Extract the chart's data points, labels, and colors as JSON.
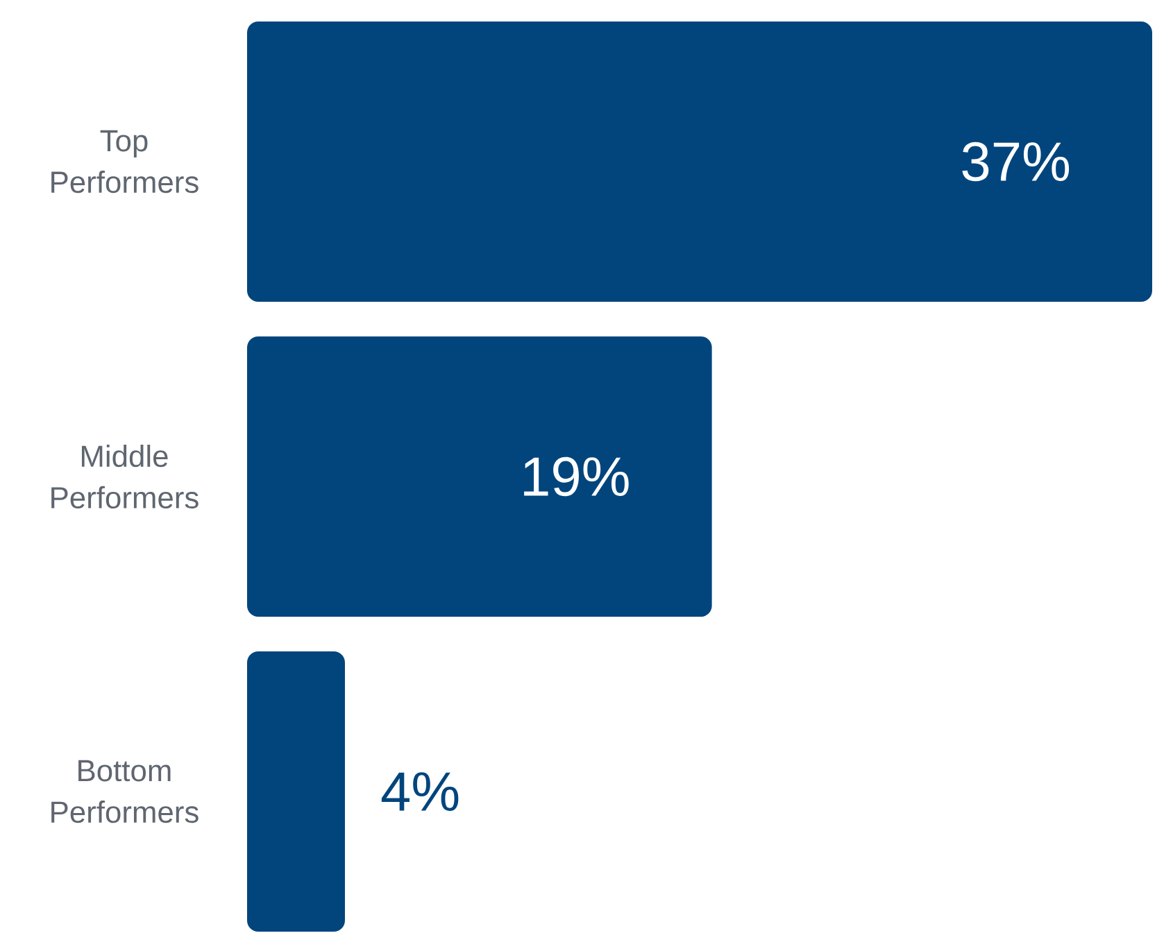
{
  "chart_data": {
    "type": "bar",
    "orientation": "horizontal",
    "categories": [
      "Top Performers",
      "Middle Performers",
      "Bottom Performers"
    ],
    "values": [
      37,
      19,
      4
    ],
    "value_labels": [
      "37%",
      "19%",
      "4%"
    ],
    "color": "#02457d"
  }
}
